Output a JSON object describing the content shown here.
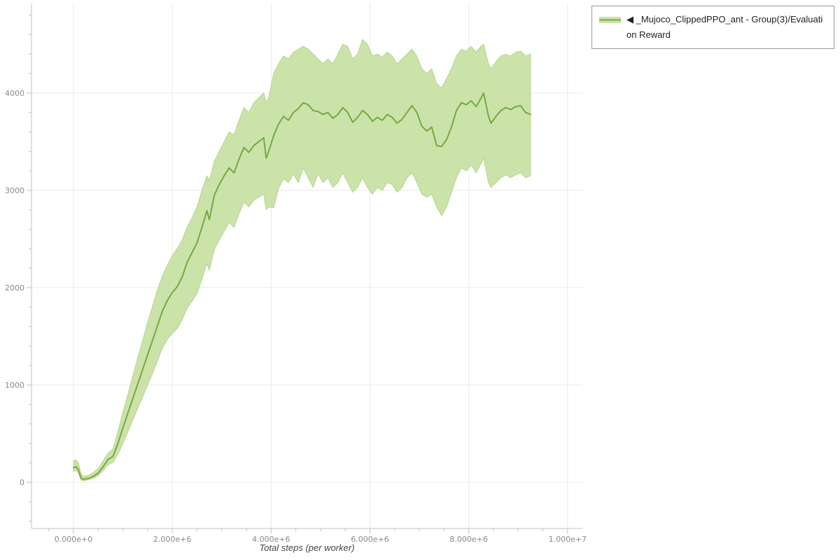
{
  "chart_data": {
    "type": "line",
    "title": "",
    "xlabel": "Total steps (per worker)",
    "ylabel": "",
    "grid": true,
    "x_range": [
      -850000,
      10300000
    ],
    "y_range": [
      -475,
      4920
    ],
    "x_ticks": {
      "values": [
        0,
        2000000,
        4000000,
        6000000,
        8000000,
        10000000
      ],
      "labels": [
        "0.000e+0",
        "2.000e+6",
        "4.000e+6",
        "6.000e+6",
        "8.000e+6",
        "1.000e+7"
      ]
    },
    "y_ticks": {
      "values": [
        0,
        1000,
        2000,
        3000,
        4000
      ],
      "labels": [
        "0",
        "1000",
        "2000",
        "3000",
        "4000"
      ]
    },
    "legend": {
      "position": "top-right",
      "label": "◀ _Mujoco_ClippedPPO_ant - Group(3)/Evaluation Reward"
    },
    "colors": {
      "line": "#76a843",
      "band": "#cbe3a8",
      "band_edge": "#b5d48c",
      "grid": "#e9e9e9",
      "axis": "#c2c2c2",
      "tick_label": "#898989",
      "axis_label": "#444444"
    },
    "series": [
      {
        "name": "_Mujoco_ClippedPPO_ant - Group(3)/Evaluation Reward",
        "x_millions": [
          0,
          0.05,
          0.1,
          0.15,
          0.2,
          0.3,
          0.4,
          0.5,
          0.6,
          0.7,
          0.8,
          0.9,
          1,
          1.1,
          1.2,
          1.3,
          1.4,
          1.5,
          1.6,
          1.7,
          1.8,
          1.9,
          2,
          2.1,
          2.2,
          2.3,
          2.4,
          2.5,
          2.6,
          2.7,
          2.75,
          2.85,
          2.95,
          3.05,
          3.15,
          3.25,
          3.35,
          3.45,
          3.55,
          3.65,
          3.75,
          3.85,
          3.9,
          3.95,
          4.05,
          4.15,
          4.25,
          4.35,
          4.45,
          4.55,
          4.65,
          4.75,
          4.85,
          4.95,
          5.05,
          5.15,
          5.25,
          5.35,
          5.45,
          5.55,
          5.65,
          5.75,
          5.85,
          5.95,
          6.05,
          6.15,
          6.25,
          6.35,
          6.45,
          6.55,
          6.65,
          6.75,
          6.85,
          6.95,
          7.05,
          7.15,
          7.25,
          7.35,
          7.45,
          7.55,
          7.65,
          7.75,
          7.85,
          7.95,
          8.05,
          8.15,
          8.25,
          8.3,
          8.4,
          8.45,
          8.55,
          8.65,
          8.75,
          8.85,
          8.95,
          9.05,
          9.15,
          9.25
        ],
        "mean": [
          150,
          160,
          130,
          45,
          30,
          40,
          60,
          95,
          160,
          235,
          265,
          400,
          560,
          710,
          860,
          1010,
          1160,
          1310,
          1460,
          1610,
          1760,
          1870,
          1950,
          2010,
          2110,
          2260,
          2360,
          2460,
          2620,
          2790,
          2700,
          2950,
          3060,
          3150,
          3230,
          3180,
          3320,
          3440,
          3390,
          3460,
          3500,
          3540,
          3330,
          3400,
          3560,
          3680,
          3760,
          3720,
          3800,
          3840,
          3900,
          3880,
          3820,
          3810,
          3780,
          3800,
          3740,
          3780,
          3850,
          3800,
          3700,
          3750,
          3820,
          3780,
          3710,
          3750,
          3720,
          3780,
          3750,
          3690,
          3730,
          3800,
          3870,
          3800,
          3660,
          3610,
          3650,
          3460,
          3450,
          3520,
          3650,
          3820,
          3900,
          3880,
          3920,
          3860,
          3950,
          4000,
          3760,
          3690,
          3760,
          3820,
          3850,
          3830,
          3860,
          3870,
          3800,
          3780
        ],
        "lower": [
          115,
          120,
          95,
          25,
          15,
          25,
          40,
          70,
          120,
          180,
          205,
          290,
          400,
          520,
          640,
          760,
          880,
          1000,
          1120,
          1250,
          1380,
          1470,
          1530,
          1580,
          1670,
          1790,
          1860,
          1940,
          2090,
          2250,
          2180,
          2390,
          2490,
          2580,
          2670,
          2620,
          2760,
          2880,
          2830,
          2900,
          2930,
          2960,
          2800,
          2830,
          2820,
          3020,
          3120,
          3080,
          3170,
          3080,
          3230,
          3130,
          3030,
          3170,
          3080,
          3130,
          3030,
          3080,
          3180,
          3080,
          2980,
          3030,
          3130,
          3030,
          2960,
          3030,
          3000,
          3080,
          3060,
          2980,
          3030,
          3130,
          3180,
          3080,
          2960,
          2930,
          2960,
          2830,
          2740,
          2830,
          2980,
          3130,
          3230,
          3200,
          3260,
          3180,
          3280,
          3330,
          3080,
          3030,
          3080,
          3130,
          3160,
          3130,
          3160,
          3180,
          3130,
          3150
        ],
        "upper": [
          220,
          230,
          200,
          90,
          60,
          70,
          100,
          140,
          220,
          300,
          340,
          520,
          720,
          900,
          1090,
          1280,
          1460,
          1640,
          1810,
          1980,
          2120,
          2230,
          2330,
          2400,
          2490,
          2620,
          2720,
          2830,
          3000,
          3150,
          3100,
          3300,
          3400,
          3500,
          3600,
          3570,
          3720,
          3850,
          3800,
          3900,
          3950,
          4000,
          3900,
          3950,
          4200,
          4300,
          4380,
          4350,
          4420,
          4450,
          4480,
          4450,
          4400,
          4350,
          4300,
          4350,
          4300,
          4400,
          4500,
          4480,
          4350,
          4400,
          4550,
          4500,
          4380,
          4400,
          4370,
          4420,
          4380,
          4300,
          4350,
          4400,
          4450,
          4380,
          4250,
          4200,
          4250,
          4100,
          4050,
          4150,
          4250,
          4380,
          4450,
          4430,
          4480,
          4420,
          4480,
          4500,
          4300,
          4250,
          4320,
          4380,
          4400,
          4380,
          4420,
          4430,
          4380,
          4400
        ]
      }
    ]
  }
}
